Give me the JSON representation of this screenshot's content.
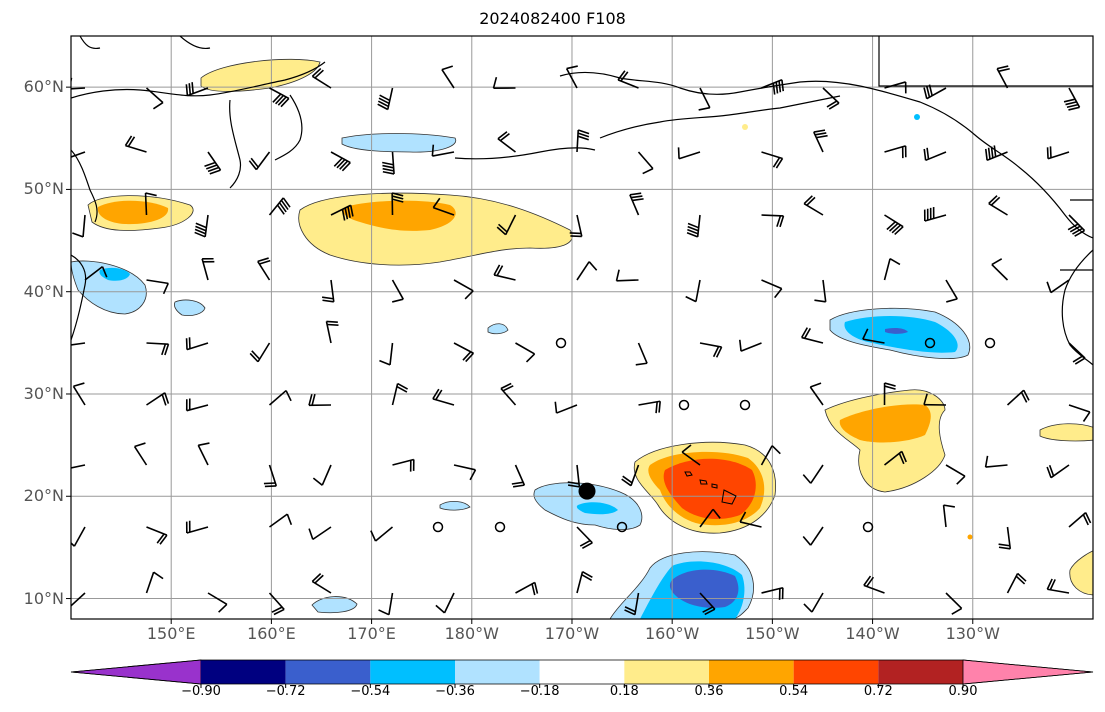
{
  "title": "2024082400 F108",
  "lat_labels": [
    {
      "text": "60°N",
      "lat": 60
    },
    {
      "text": "50°N",
      "lat": 50
    },
    {
      "text": "40°N",
      "lat": 40
    },
    {
      "text": "30°N",
      "lat": 30
    },
    {
      "text": "20°N",
      "lat": 20
    },
    {
      "text": "10°N",
      "lat": 10
    }
  ],
  "lon_labels": [
    {
      "text": "150°E",
      "lon": 150
    },
    {
      "text": "160°E",
      "lon": 160
    },
    {
      "text": "170°E",
      "lon": 170
    },
    {
      "text": "180°W",
      "lon": 180
    },
    {
      "text": "170°W",
      "lon": 190
    },
    {
      "text": "160°W",
      "lon": 200
    },
    {
      "text": "150°W",
      "lon": 210
    },
    {
      "text": "140°W",
      "lon": 220
    },
    {
      "text": "130°W",
      "lon": 230
    }
  ],
  "map_extent": {
    "lon_min": 140,
    "lon_max": 242,
    "lat_min": 8,
    "lat_max": 65
  },
  "colorbar": {
    "ticks": [
      "−0.90",
      "−0.72",
      "−0.54",
      "−0.36",
      "−0.18",
      "0.18",
      "0.36",
      "0.54",
      "0.72",
      "0.90"
    ],
    "colors": [
      "#9932cc",
      "#000080",
      "#3a5fcd",
      "#00bfff",
      "#b0e2ff",
      "#ffffff",
      "#ffec8b",
      "#ffa500",
      "#ff4500",
      "#b22222",
      "#ff82ab"
    ]
  },
  "colors": {
    "pos1": "#ffec8b",
    "pos2": "#ffa500",
    "pos3": "#ff4500",
    "neg1": "#b0e2ff",
    "neg2": "#00bfff",
    "neg3": "#3a5fcd"
  },
  "storm_marker": {
    "lon": 191.5,
    "lat": 20.5
  }
}
